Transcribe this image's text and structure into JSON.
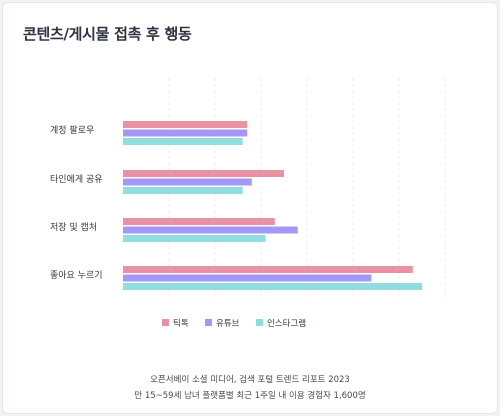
{
  "title": "콘텐츠/게시물 접촉 후 행동",
  "chart_data": {
    "type": "bar",
    "orientation": "horizontal",
    "categories": [
      "계정 팔로우",
      "타인에게 공유",
      "저장 및 캡처",
      "좋아요 누르기"
    ],
    "series": [
      {
        "name": "틱톡",
        "color": "#e892a2",
        "values": [
          27,
          35,
          33,
          63
        ]
      },
      {
        "name": "유튜브",
        "color": "#a797f5",
        "values": [
          27,
          28,
          38,
          54
        ]
      },
      {
        "name": "인스타그램",
        "color": "#8fdde0",
        "values": [
          26,
          26,
          31,
          65
        ]
      }
    ],
    "xlim": [
      0,
      70
    ],
    "grid": true,
    "legend_position": "bottom"
  },
  "source": {
    "line1": "오픈서베이 소셜 미디어, 검색 포털 트렌드 리포트 2023",
    "line2": "만 15~59세 남녀 플랫폼별 최근 1주일 내 이용 경험자 1,600명"
  }
}
